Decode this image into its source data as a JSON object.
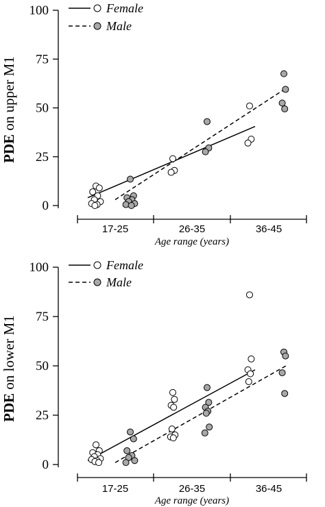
{
  "chart_data": [
    {
      "type": "scatter",
      "ylabel_bold": "PDE",
      "ylabel_rest": " on upper M1",
      "xlabel": "Age range (years)",
      "categories": [
        "17-25",
        "26-35",
        "36-45"
      ],
      "ylim": [
        0,
        100
      ],
      "yticks": [
        0,
        25,
        50,
        75,
        100
      ],
      "legend_position": "top-left",
      "series": [
        {
          "name": "Female",
          "marker": "open-circle",
          "line_style": "solid",
          "points": [
            {
              "category": "17-25",
              "y": 10
            },
            {
              "category": "17-25",
              "y": 9
            },
            {
              "category": "17-25",
              "y": 7
            },
            {
              "category": "17-25",
              "y": 5
            },
            {
              "category": "17-25",
              "y": 3
            },
            {
              "category": "17-25",
              "y": 2
            },
            {
              "category": "17-25",
              "y": 1
            },
            {
              "category": "17-25",
              "y": 0.5
            },
            {
              "category": "17-25",
              "y": 0
            },
            {
              "category": "26-35",
              "y": 24
            },
            {
              "category": "26-35",
              "y": 18
            },
            {
              "category": "26-35",
              "y": 17
            },
            {
              "category": "36-45",
              "y": 51
            },
            {
              "category": "36-45",
              "y": 34
            },
            {
              "category": "36-45",
              "y": 32
            }
          ],
          "trend": {
            "from": {
              "category": "17-25",
              "y": 4
            },
            "to": {
              "category": "36-45",
              "y": 40.5
            }
          }
        },
        {
          "name": "Male",
          "marker": "filled-circle",
          "line_style": "dashed",
          "points": [
            {
              "category": "17-25",
              "y": 13.5
            },
            {
              "category": "17-25",
              "y": 5
            },
            {
              "category": "17-25",
              "y": 4
            },
            {
              "category": "17-25",
              "y": 3
            },
            {
              "category": "17-25",
              "y": 2
            },
            {
              "category": "17-25",
              "y": 1
            },
            {
              "category": "17-25",
              "y": 0.5
            },
            {
              "category": "17-25",
              "y": 0
            },
            {
              "category": "26-35",
              "y": 43
            },
            {
              "category": "26-35",
              "y": 29.5
            },
            {
              "category": "26-35",
              "y": 27.5
            },
            {
              "category": "36-45",
              "y": 67.5
            },
            {
              "category": "36-45",
              "y": 59.5
            },
            {
              "category": "36-45",
              "y": 52.5
            },
            {
              "category": "36-45",
              "y": 49.5
            }
          ],
          "trend": {
            "from": {
              "category": "17-25",
              "y": 3
            },
            "to": {
              "category": "36-45",
              "y": 60
            }
          }
        }
      ]
    },
    {
      "type": "scatter",
      "ylabel_bold": "PDE",
      "ylabel_rest": " on lower M1",
      "xlabel": "Age range (years)",
      "categories": [
        "17-25",
        "26-35",
        "36-45"
      ],
      "ylim": [
        0,
        100
      ],
      "yticks": [
        0,
        25,
        50,
        75,
        100
      ],
      "legend_position": "top-left",
      "series": [
        {
          "name": "Female",
          "marker": "open-circle",
          "line_style": "solid",
          "points": [
            {
              "category": "17-25",
              "y": 10
            },
            {
              "category": "17-25",
              "y": 7
            },
            {
              "category": "17-25",
              "y": 6
            },
            {
              "category": "17-25",
              "y": 5
            },
            {
              "category": "17-25",
              "y": 4
            },
            {
              "category": "17-25",
              "y": 3
            },
            {
              "category": "17-25",
              "y": 2.5
            },
            {
              "category": "17-25",
              "y": 2
            },
            {
              "category": "17-25",
              "y": 1.5
            },
            {
              "category": "17-25",
              "y": 1
            },
            {
              "category": "26-35",
              "y": 36.5
            },
            {
              "category": "26-35",
              "y": 33
            },
            {
              "category": "26-35",
              "y": 30
            },
            {
              "category": "26-35",
              "y": 29
            },
            {
              "category": "26-35",
              "y": 18
            },
            {
              "category": "26-35",
              "y": 15
            },
            {
              "category": "26-35",
              "y": 14
            },
            {
              "category": "26-35",
              "y": 13.5
            },
            {
              "category": "36-45",
              "y": 86
            },
            {
              "category": "36-45",
              "y": 53.5
            },
            {
              "category": "36-45",
              "y": 48
            },
            {
              "category": "36-45",
              "y": 46
            },
            {
              "category": "36-45",
              "y": 42
            }
          ],
          "trend": {
            "from": {
              "category": "17-25",
              "y": 2
            },
            "to": {
              "category": "36-45",
              "y": 48
            }
          }
        },
        {
          "name": "Male",
          "marker": "filled-circle",
          "line_style": "dashed",
          "points": [
            {
              "category": "17-25",
              "y": 16.5
            },
            {
              "category": "17-25",
              "y": 13
            },
            {
              "category": "17-25",
              "y": 7
            },
            {
              "category": "17-25",
              "y": 4.5
            },
            {
              "category": "17-25",
              "y": 3.5
            },
            {
              "category": "17-25",
              "y": 2
            },
            {
              "category": "17-25",
              "y": 1
            },
            {
              "category": "26-35",
              "y": 39
            },
            {
              "category": "26-35",
              "y": 31.5
            },
            {
              "category": "26-35",
              "y": 29
            },
            {
              "category": "26-35",
              "y": 27
            },
            {
              "category": "26-35",
              "y": 26
            },
            {
              "category": "26-35",
              "y": 19
            },
            {
              "category": "26-35",
              "y": 16
            },
            {
              "category": "36-45",
              "y": 57
            },
            {
              "category": "36-45",
              "y": 55
            },
            {
              "category": "36-45",
              "y": 46.5
            },
            {
              "category": "36-45",
              "y": 36
            }
          ],
          "trend": {
            "from": {
              "category": "17-25",
              "y": 1
            },
            "to": {
              "category": "36-45",
              "y": 50
            }
          }
        }
      ]
    }
  ]
}
